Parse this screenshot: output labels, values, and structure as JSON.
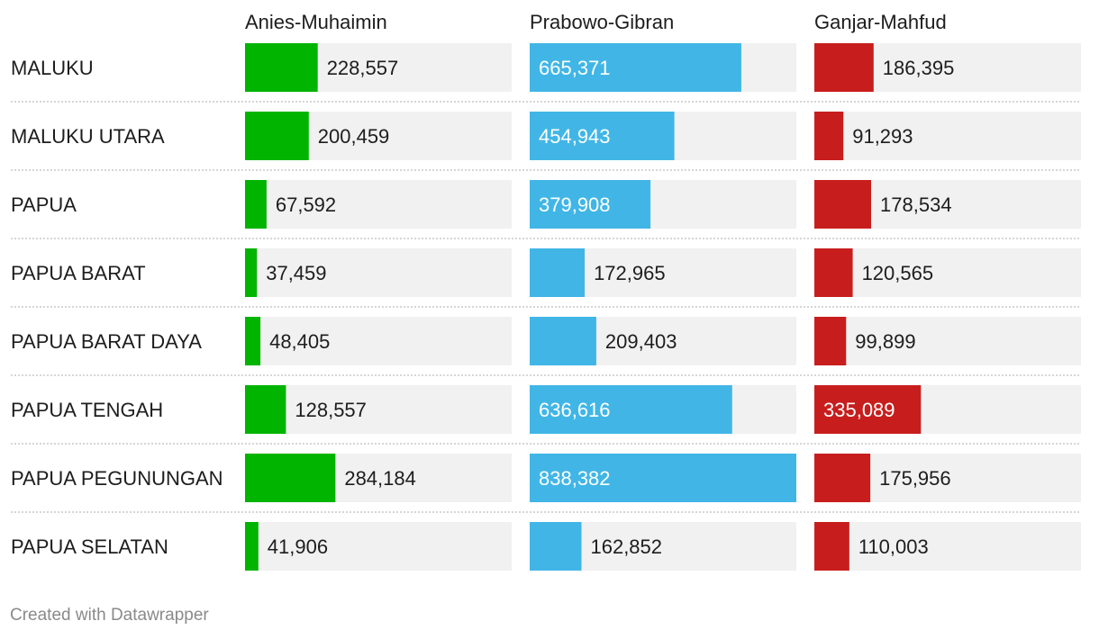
{
  "chart_data": {
    "type": "bar",
    "orientation": "horizontal",
    "layout": "small-multiples",
    "categories": [
      "MALUKU",
      "MALUKU UTARA",
      "PAPUA",
      "PAPUA BARAT",
      "PAPUA BARAT DAYA",
      "PAPUA TENGAH",
      "PAPUA PEGUNUNGAN",
      "PAPUA SELATAN"
    ],
    "value_labels": {
      "Anies-Muhaimin": [
        "228,557",
        "200,459",
        "67,592",
        "37,459",
        "48,405",
        "128,557",
        "284,184",
        "41,906"
      ],
      "Prabowo-Gibran": [
        "665,371",
        "454,943",
        "379,908",
        "172,965",
        "209,403",
        "636,616",
        "838,382",
        "162,852"
      ],
      "Ganjar-Mahfud": [
        "186,395",
        "91,293",
        "178,534",
        "120,565",
        "99,899",
        "335,089",
        "175,956",
        "110,003"
      ]
    },
    "series": [
      {
        "name": "Anies-Muhaimin",
        "color": "#00b400",
        "values": [
          228557,
          200459,
          67592,
          37459,
          48405,
          128557,
          284184,
          41906
        ]
      },
      {
        "name": "Prabowo-Gibran",
        "color": "#41b6e6",
        "values": [
          665371,
          454943,
          379908,
          172965,
          209403,
          636616,
          838382,
          162852
        ]
      },
      {
        "name": "Ganjar-Mahfud",
        "color": "#c71e1d",
        "values": [
          186395,
          91293,
          178534,
          120565,
          99899,
          335089,
          175956,
          110003
        ]
      }
    ],
    "xlim": [
      0,
      838382
    ],
    "background_bar_color": "#f1f1f1",
    "grid": false,
    "legend": "column-headers"
  },
  "footer": {
    "credit": "Created with Datawrapper"
  }
}
